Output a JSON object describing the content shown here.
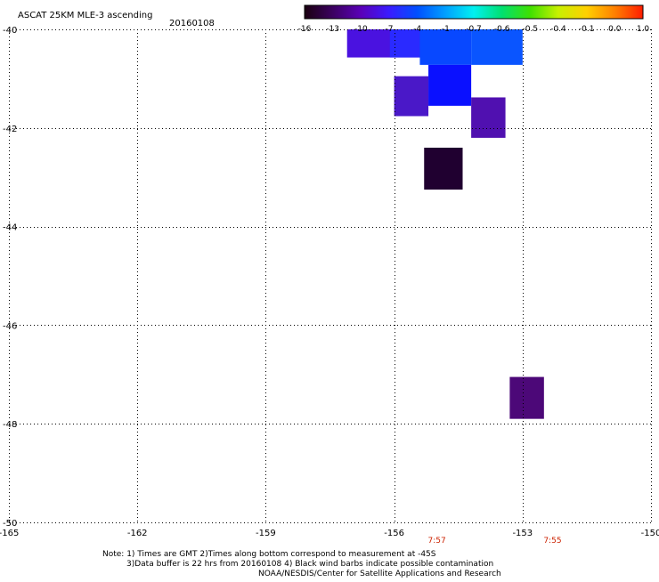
{
  "header": {
    "title": "ASCAT 25KM MLE-3 ascending",
    "date": "20160108"
  },
  "colorbar": {
    "labels": [
      "-16",
      "-13",
      "-10",
      "-7",
      "-4",
      "-1",
      "-0.7",
      "-0.6",
      "-0.5",
      "-0.4",
      "-0.1",
      "0.0",
      "1.0"
    ],
    "colors": [
      "#1a0010",
      "#3b0060",
      "#5a00b8",
      "#3a1cff",
      "#0050ff",
      "#00a0ff",
      "#00f0f0",
      "#00e070",
      "#40e000",
      "#c8f000",
      "#ffd000",
      "#ff8000",
      "#ff1c00"
    ]
  },
  "chart_data": {
    "type": "heatmap",
    "title": "ASCAT 25KM MLE-3 ascending",
    "xlim": [
      -165,
      -150
    ],
    "ylim": [
      -50,
      -40
    ],
    "x_ticks": [
      -165,
      -162,
      -159,
      -156,
      -153,
      -150
    ],
    "x_tick_labels": [
      "-165",
      "-162",
      "-159",
      "-156",
      "-153",
      "-150"
    ],
    "y_ticks": [
      -40,
      -42,
      -44,
      -46,
      -48,
      -50
    ],
    "y_tick_labels": [
      "-40",
      "-42",
      "-44",
      "-46",
      "-48",
      "-50"
    ],
    "grid": true,
    "time_labels": [
      {
        "lon": -155.0,
        "text": "7:57"
      },
      {
        "lon": -152.3,
        "text": "7:55"
      }
    ],
    "cells": [
      {
        "lon": [
          -157.1,
          -155.0
        ],
        "lat": [
          -40.57,
          -40.0
        ],
        "color": "#4a12e0"
      },
      {
        "lon": [
          -156.1,
          -155.0
        ],
        "lat": [
          -40.57,
          -40.0
        ],
        "color": "#2a2aff"
      },
      {
        "lon": [
          -155.4,
          -154.2
        ],
        "lat": [
          -40.72,
          -40.0
        ],
        "color": "#0848ff"
      },
      {
        "lon": [
          -154.2,
          -153.0
        ],
        "lat": [
          -40.72,
          -40.0
        ],
        "color": "#0a55ff"
      },
      {
        "lon": [
          -155.2,
          -154.2
        ],
        "lat": [
          -41.55,
          -40.72
        ],
        "color": "#0a10ff"
      },
      {
        "lon": [
          -156.0,
          -155.2
        ],
        "lat": [
          -41.76,
          -40.95
        ],
        "color": "#4a18c8"
      },
      {
        "lon": [
          -154.2,
          -153.4
        ],
        "lat": [
          -42.2,
          -41.38
        ],
        "color": "#5010b0"
      },
      {
        "lon": [
          -155.3,
          -154.4
        ],
        "lat": [
          -43.25,
          -42.4
        ],
        "color": "#200030"
      },
      {
        "lon": [
          -153.3,
          -152.5
        ],
        "lat": [
          -47.9,
          -47.05
        ],
        "color": "#4c0878"
      }
    ]
  },
  "footer": {
    "line1": "Note: 1) Times are GMT 2)Times along bottom correspond to measurement at -45S",
    "line2": "3)Data buffer is 22 hrs from 20160108 4) Black wind barbs indicate possible contamination",
    "line3": "NOAA/NESDIS/Center for Satellite Applications and Research"
  }
}
